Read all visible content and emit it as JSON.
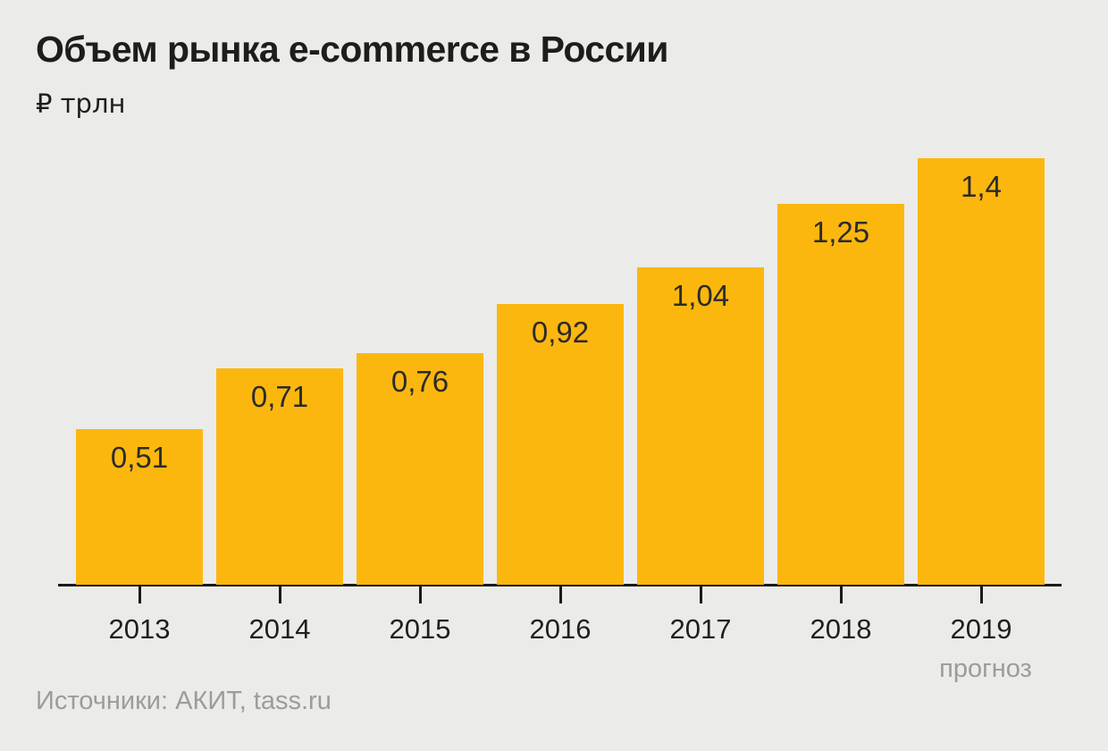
{
  "page": {
    "title": "Объем рынка e-commerce в России",
    "unit_label": "₽ трлн",
    "source": "Источники: АКИТ, tass.ru"
  },
  "colors": {
    "background": "#ebebe9",
    "bar": "#fcb70f",
    "text": "#1d1d1b",
    "muted_text": "#9c9c9c",
    "axis": "#1a1a1a"
  },
  "chart_data": {
    "type": "bar",
    "title": "Объем рынка e-commerce в России",
    "ylabel": "₽ трлн",
    "xlabel": "",
    "categories": [
      "2013",
      "2014",
      "2015",
      "2016",
      "2017",
      "2018",
      "2019"
    ],
    "values": [
      0.51,
      0.71,
      0.76,
      0.92,
      1.04,
      1.25,
      1.4
    ],
    "value_labels": [
      "0,51",
      "0,71",
      "0,76",
      "0,92",
      "1,04",
      "1,25",
      "1,4"
    ],
    "forecast_category": "2019",
    "forecast_label": "прогноз",
    "ylim": [
      0,
      1.45
    ],
    "grid": false,
    "legend": false,
    "value_labels_position": "inside-top",
    "source": "Источники: АКИТ, tass.ru"
  }
}
